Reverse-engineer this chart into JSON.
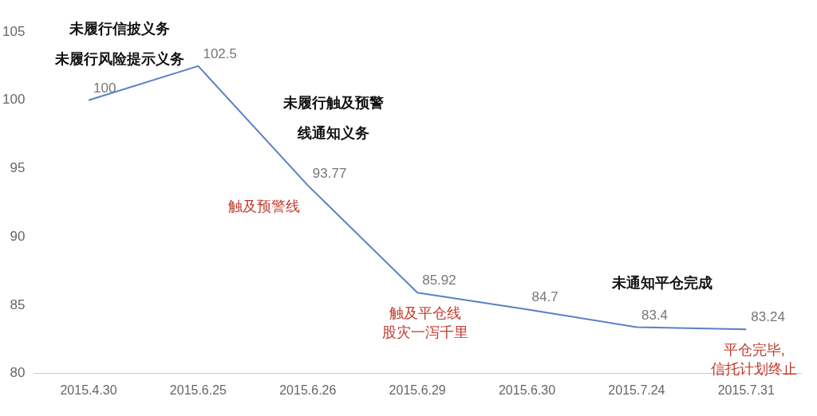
{
  "chart_data": {
    "type": "line",
    "categories": [
      "2015.4.30",
      "2015.6.25",
      "2015.6.26",
      "2015.6.29",
      "2015.6.30",
      "2015.7.24",
      "2015.7.31"
    ],
    "series": [
      {
        "color": "#5b7fc7",
        "values": [
          100,
          102.5,
          93.77,
          85.92,
          84.7,
          83.4,
          83.24
        ]
      }
    ],
    "ylim": [
      80,
      105
    ],
    "yticks": [
      80,
      85,
      90,
      95,
      100,
      105
    ],
    "data_labels": true,
    "grid": false,
    "legend": false,
    "marker": "none",
    "annotations": [
      "未履行信披义务",
      "未履行风险提示义务",
      "未履行触及预警",
      "线通知义务",
      "未通知平仓完成",
      {
        "text": "触及预警线",
        "x": "2015.6.26",
        "y": 93.77
      },
      {
        "text": "触及平仓线",
        "x": "2015.6.29",
        "y": 85.92
      },
      {
        "text": "股灾一泻千里",
        "x": "2015.6.29",
        "y": 85.92
      },
      {
        "text": "平仓完毕,",
        "x": "2015.7.31",
        "y": 83.24
      },
      {
        "text": "信托计划终止",
        "x": "2015.7.31",
        "y": 83.24
      }
    ]
  }
}
